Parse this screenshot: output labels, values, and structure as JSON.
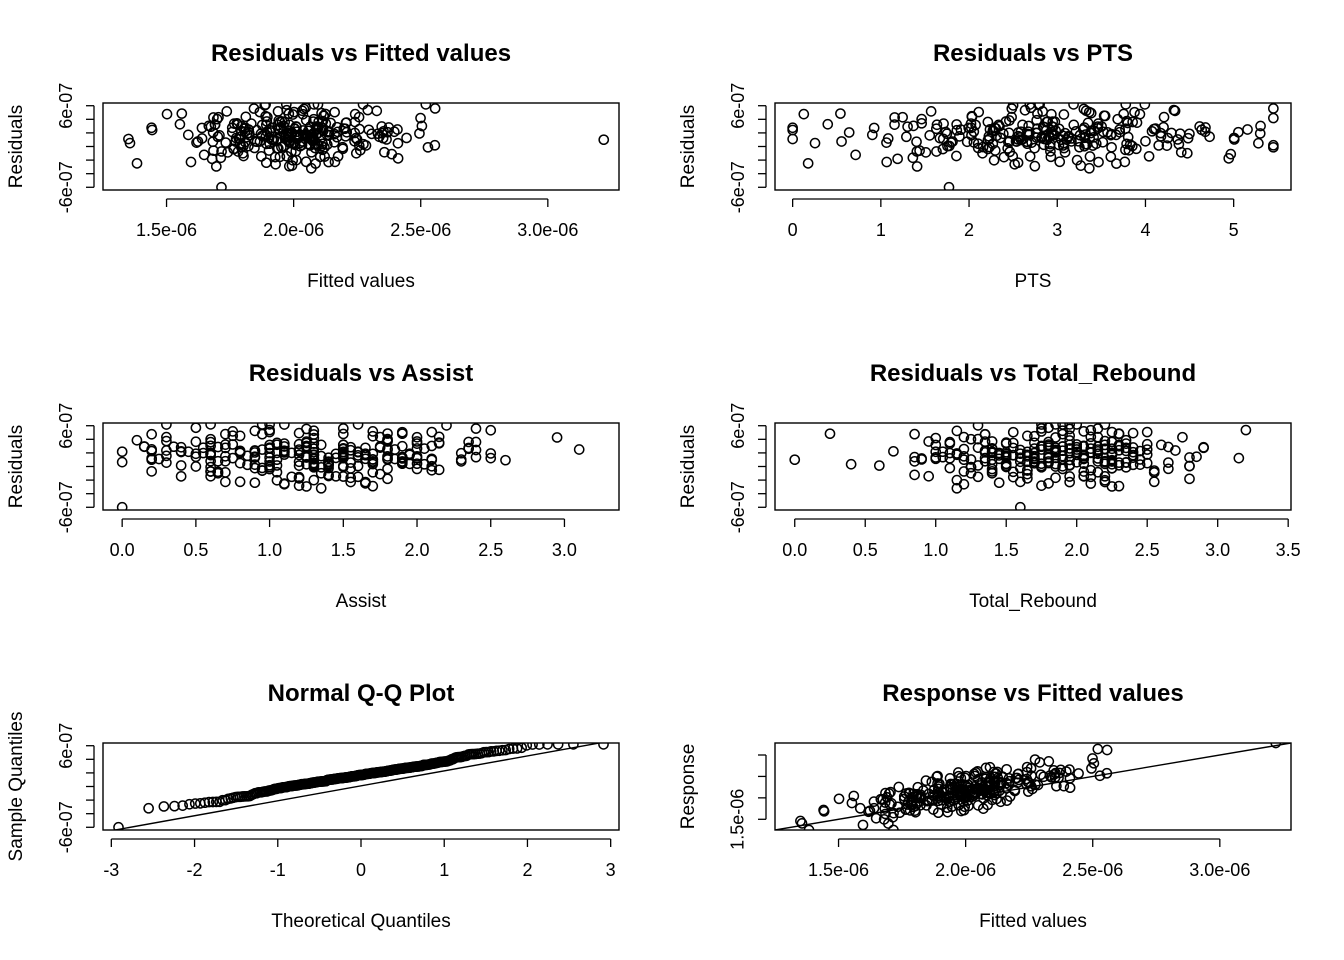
{
  "chart_data": [
    {
      "type": "scatter",
      "title": "Residuals vs Fitted values",
      "xlabel": "Fitted values",
      "ylabel": "Residuals",
      "xlim": [
        1.25e-06,
        3.28e-06
      ],
      "ylim": [
        -6.4e-07,
        6.4e-07
      ],
      "x_ticks": [
        1.5e-06,
        2e-06,
        2.5e-06,
        3e-06
      ],
      "x_tick_labels": [
        "1.5e-06",
        "2.0e-06",
        "2.5e-06",
        "3.0e-06"
      ],
      "y_ticks": [
        -6e-07,
        -4e-07,
        -2e-07,
        0,
        2e-07,
        4e-07,
        6e-07
      ],
      "y_tick_labels": [
        "-6e-07",
        "",
        "",
        "",
        "",
        "",
        "6e-07"
      ],
      "seed": 11,
      "points": [],
      "grid": false
    },
    {
      "type": "scatter",
      "title": "Residuals vs PTS",
      "xlabel": "PTS",
      "ylabel": "Residuals",
      "xlim": [
        -0.2,
        5.65
      ],
      "ylim": [
        -6.4e-07,
        6.4e-07
      ],
      "x_ticks": [
        0,
        1,
        2,
        3,
        4,
        5
      ],
      "x_tick_labels": [
        "0",
        "1",
        "2",
        "3",
        "4",
        "5"
      ],
      "y_ticks": [
        -6e-07,
        -4e-07,
        -2e-07,
        0,
        2e-07,
        4e-07,
        6e-07
      ],
      "y_tick_labels": [
        "-6e-07",
        "",
        "",
        "",
        "",
        "",
        "6e-07"
      ],
      "seed": 23,
      "points": [],
      "grid": false
    },
    {
      "type": "scatter",
      "title": "Residuals vs Assist",
      "xlabel": "Assist",
      "ylabel": "Residuals",
      "xlim": [
        -0.13,
        3.37
      ],
      "ylim": [
        -6.4e-07,
        6.4e-07
      ],
      "x_ticks": [
        0.0,
        0.5,
        1.0,
        1.5,
        2.0,
        2.5,
        3.0
      ],
      "x_tick_labels": [
        "0.0",
        "0.5",
        "1.0",
        "1.5",
        "2.0",
        "2.5",
        "3.0"
      ],
      "y_ticks": [
        -6e-07,
        -4e-07,
        -2e-07,
        0,
        2e-07,
        4e-07,
        6e-07
      ],
      "y_tick_labels": [
        "-6e-07",
        "",
        "",
        "",
        "",
        "",
        "6e-07"
      ],
      "seed": 37,
      "points": [],
      "grid": false
    },
    {
      "type": "scatter",
      "title": "Residuals vs Total_Rebound",
      "xlabel": "Total_Rebound",
      "ylabel": "Residuals",
      "xlim": [
        -0.14,
        3.52
      ],
      "ylim": [
        -6.4e-07,
        6.4e-07
      ],
      "x_ticks": [
        0.0,
        0.5,
        1.0,
        1.5,
        2.0,
        2.5,
        3.0,
        3.5
      ],
      "x_tick_labels": [
        "0.0",
        "0.5",
        "1.0",
        "1.5",
        "2.0",
        "2.5",
        "3.0",
        "3.5"
      ],
      "y_ticks": [
        -6e-07,
        -4e-07,
        -2e-07,
        0,
        2e-07,
        4e-07,
        6e-07
      ],
      "y_tick_labels": [
        "-6e-07",
        "",
        "",
        "",
        "",
        "",
        "6e-07"
      ],
      "seed": 41,
      "points": [],
      "grid": false
    },
    {
      "type": "scatter",
      "title": "Normal Q-Q Plot",
      "xlabel": "Theoretical Quantiles",
      "ylabel": "Sample Quantiles",
      "xlim": [
        -3.1,
        3.1
      ],
      "ylim": [
        -6.4e-07,
        6.4e-07
      ],
      "x_ticks": [
        -3,
        -2,
        -1,
        0,
        1,
        2,
        3
      ],
      "x_tick_labels": [
        "-3",
        "-2",
        "-1",
        "0",
        "1",
        "2",
        "3"
      ],
      "y_ticks": [
        -6e-07,
        -4e-07,
        -2e-07,
        0,
        2e-07,
        4e-07,
        6e-07
      ],
      "y_tick_labels": [
        "-6e-07",
        "",
        "",
        "",
        "",
        "",
        "6e-07"
      ],
      "reference_line": {
        "intercept": 1e-08,
        "slope": 2.2e-07
      },
      "n": 280,
      "grid": false
    },
    {
      "type": "scatter",
      "title": "Response vs Fitted values",
      "xlabel": "Fitted values",
      "ylabel": "Response",
      "xlim": [
        1.25e-06,
        3.28e-06
      ],
      "ylim": [
        1.25e-06,
        3.28e-06
      ],
      "x_ticks": [
        1.5e-06,
        2e-06,
        2.5e-06,
        3e-06
      ],
      "x_tick_labels": [
        "1.5e-06",
        "2.0e-06",
        "2.5e-06",
        "3.0e-06"
      ],
      "y_ticks": [
        1.5e-06,
        2e-06,
        2.5e-06,
        3e-06
      ],
      "y_tick_labels": [
        "1.5e-06",
        "",
        "",
        ""
      ],
      "reference_line": {
        "intercept": 0,
        "slope": 1
      },
      "seed": 53,
      "points": [],
      "grid": false
    }
  ]
}
